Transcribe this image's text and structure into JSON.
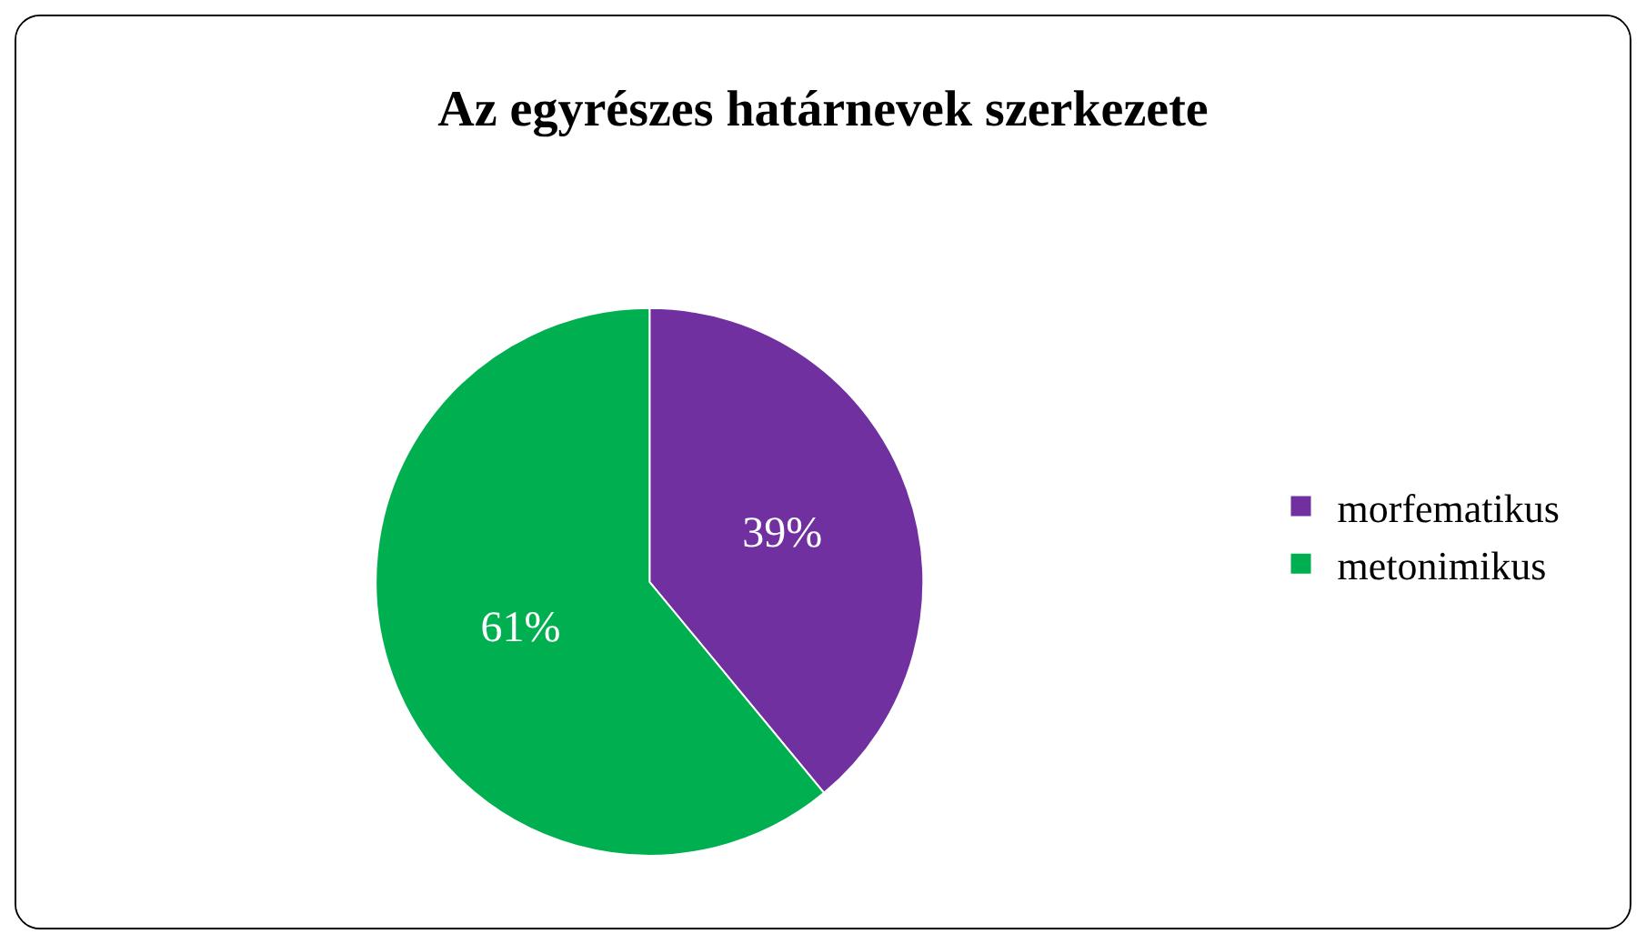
{
  "chart_data": {
    "type": "pie",
    "title": "Az egyrészes határnevek szerkezete",
    "categories": [
      "morfematikus",
      "metonimikus"
    ],
    "values": [
      39,
      61
    ],
    "colors": [
      "#7030a0",
      "#00b050"
    ],
    "value_labels": [
      "39%",
      "61%"
    ],
    "legend": "right"
  }
}
